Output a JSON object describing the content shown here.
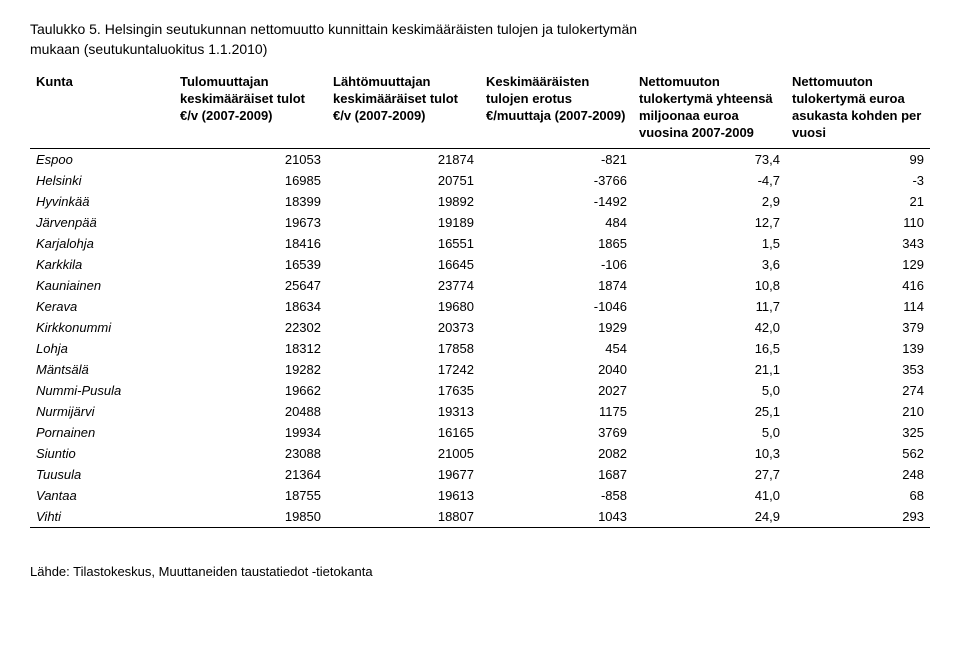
{
  "title_line1": "Taulukko 5. Helsingin seutukunnan nettomuutto kunnittain keskimääräisten tulojen ja tulokertymän",
  "title_line2": "mukaan (seutukuntaluokitus 1.1.2010)",
  "columns": [
    "Kunta",
    "Tulomuuttajan keskimääräiset tulot €/v (2007-2009)",
    "Lähtömuuttajan keskimääräiset tulot €/v (2007-2009)",
    "Keskimääräisten tulojen erotus €/muuttaja (2007-2009)",
    "Nettomuuton tulokertymä yhteensä miljoonaa euroa vuosina 2007-2009",
    "Nettomuuton tulokertymä euroa asukasta kohden per vuosi"
  ],
  "rows": [
    {
      "k": "Espoo",
      "c1": "21053",
      "c2": "21874",
      "c3": "-821",
      "c4": "73,4",
      "c5": "99"
    },
    {
      "k": "Helsinki",
      "c1": "16985",
      "c2": "20751",
      "c3": "-3766",
      "c4": "-4,7",
      "c5": "-3"
    },
    {
      "k": "Hyvinkää",
      "c1": "18399",
      "c2": "19892",
      "c3": "-1492",
      "c4": "2,9",
      "c5": "21"
    },
    {
      "k": "Järvenpää",
      "c1": "19673",
      "c2": "19189",
      "c3": "484",
      "c4": "12,7",
      "c5": "110"
    },
    {
      "k": "Karjalohja",
      "c1": "18416",
      "c2": "16551",
      "c3": "1865",
      "c4": "1,5",
      "c5": "343"
    },
    {
      "k": "Karkkila",
      "c1": "16539",
      "c2": "16645",
      "c3": "-106",
      "c4": "3,6",
      "c5": "129"
    },
    {
      "k": "Kauniainen",
      "c1": "25647",
      "c2": "23774",
      "c3": "1874",
      "c4": "10,8",
      "c5": "416"
    },
    {
      "k": "Kerava",
      "c1": "18634",
      "c2": "19680",
      "c3": "-1046",
      "c4": "11,7",
      "c5": "114"
    },
    {
      "k": "Kirkkonummi",
      "c1": "22302",
      "c2": "20373",
      "c3": "1929",
      "c4": "42,0",
      "c5": "379"
    },
    {
      "k": "Lohja",
      "c1": "18312",
      "c2": "17858",
      "c3": "454",
      "c4": "16,5",
      "c5": "139"
    },
    {
      "k": "Mäntsälä",
      "c1": "19282",
      "c2": "17242",
      "c3": "2040",
      "c4": "21,1",
      "c5": "353"
    },
    {
      "k": "Nummi-Pusula",
      "c1": "19662",
      "c2": "17635",
      "c3": "2027",
      "c4": "5,0",
      "c5": "274"
    },
    {
      "k": "Nurmijärvi",
      "c1": "20488",
      "c2": "19313",
      "c3": "1175",
      "c4": "25,1",
      "c5": "210"
    },
    {
      "k": "Pornainen",
      "c1": "19934",
      "c2": "16165",
      "c3": "3769",
      "c4": "5,0",
      "c5": "325"
    },
    {
      "k": "Siuntio",
      "c1": "23088",
      "c2": "21005",
      "c3": "2082",
      "c4": "10,3",
      "c5": "562"
    },
    {
      "k": "Tuusula",
      "c1": "21364",
      "c2": "19677",
      "c3": "1687",
      "c4": "27,7",
      "c5": "248"
    },
    {
      "k": "Vantaa",
      "c1": "18755",
      "c2": "19613",
      "c3": "-858",
      "c4": "41,0",
      "c5": "68"
    },
    {
      "k": "Vihti",
      "c1": "19850",
      "c2": "18807",
      "c3": "1043",
      "c4": "24,9",
      "c5": "293"
    }
  ],
  "source": "Lähde: Tilastokeskus, Muuttaneiden taustatiedot -tietokanta"
}
